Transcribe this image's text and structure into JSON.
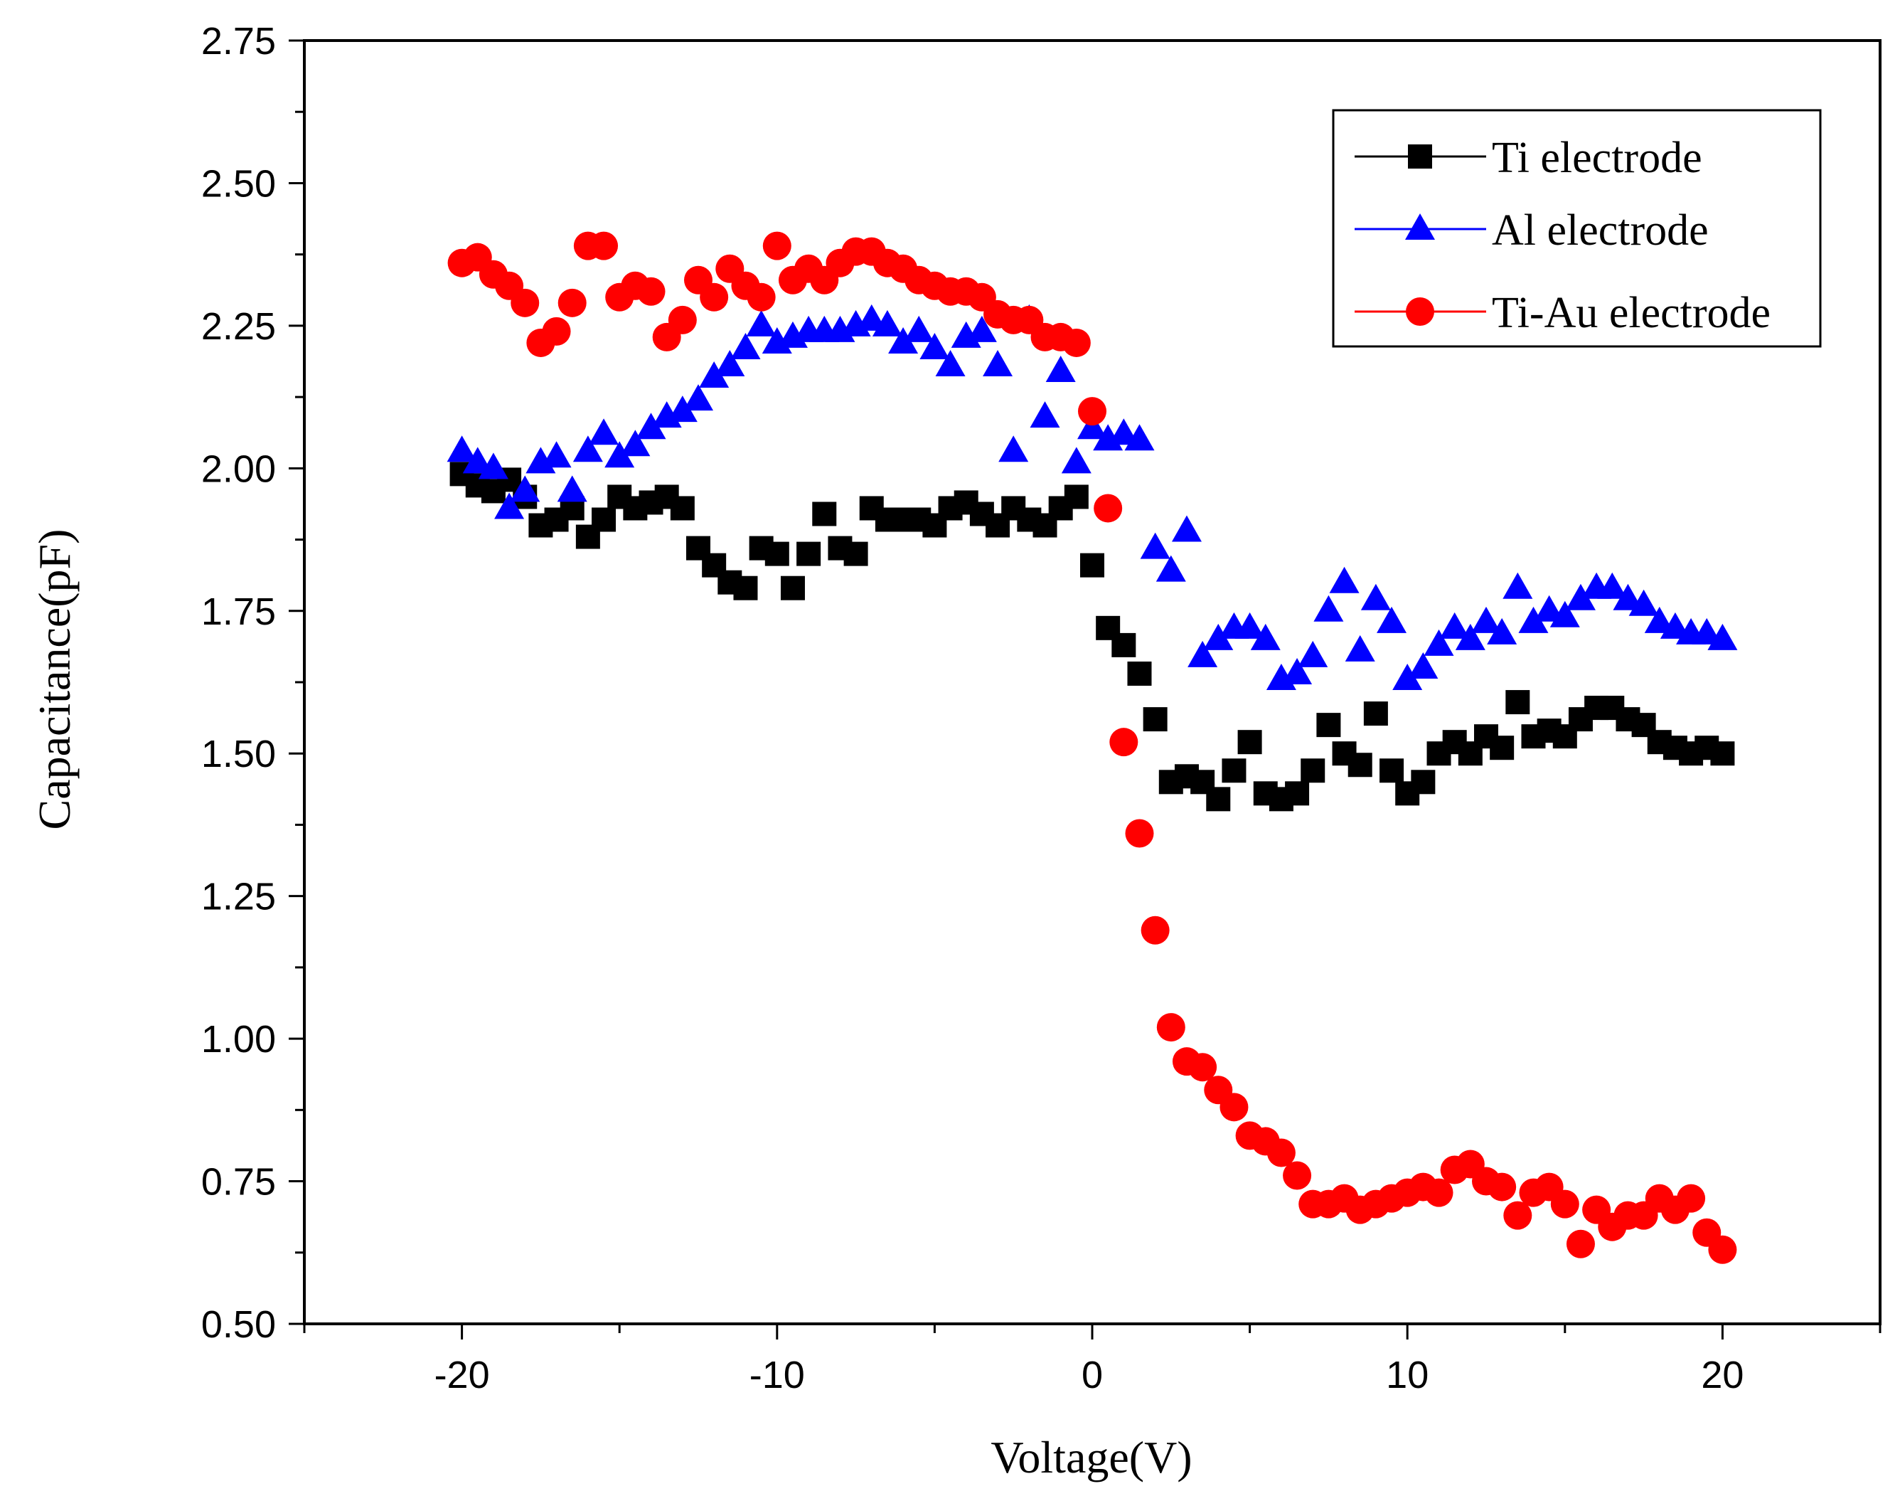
{
  "chart_data": {
    "type": "scatter",
    "title": "",
    "xlabel": "Voltage(V)",
    "ylabel": "Capacitance(pF)",
    "xlim": [
      -25,
      25
    ],
    "ylim": [
      0.5,
      2.75
    ],
    "xticks": [
      "-20",
      "-10",
      "0",
      "10",
      "20"
    ],
    "yticks": [
      "0.50",
      "0.75",
      "1.00",
      "1.25",
      "1.50",
      "1.75",
      "2.00",
      "2.25",
      "2.50",
      "2.75"
    ],
    "legend_position": "top-right",
    "series": [
      {
        "name": "Ti electrode",
        "marker": "square",
        "color": "#000000",
        "x": [
          -20,
          -19.5,
          -19,
          -18.5,
          -18,
          -17.5,
          -17,
          -16.5,
          -16,
          -15.5,
          -15,
          -14.5,
          -14,
          -13.5,
          -13,
          -12.5,
          -12,
          -11.5,
          -11,
          -10.5,
          -10,
          -9.5,
          -9,
          -8.5,
          -8,
          -7.5,
          -7,
          -6.5,
          -6,
          -5.5,
          -5,
          -4.5,
          -4,
          -3.5,
          -3,
          -2.5,
          -2,
          -1.5,
          -1,
          -0.5,
          0,
          0.5,
          1,
          1.5,
          2,
          2.5,
          3,
          3.5,
          4,
          4.5,
          5,
          5.5,
          6,
          6.5,
          7,
          7.5,
          8,
          8.5,
          9,
          9.5,
          10,
          10.5,
          11,
          11.5,
          12,
          12.5,
          13,
          13.5,
          14,
          14.5,
          15,
          15.5,
          16,
          16.5,
          17,
          17.5,
          18,
          18.5,
          19,
          19.5,
          20
        ],
        "y": [
          1.99,
          1.97,
          1.96,
          1.98,
          1.95,
          1.9,
          1.91,
          1.93,
          1.88,
          1.91,
          1.95,
          1.93,
          1.94,
          1.95,
          1.93,
          1.86,
          1.83,
          1.8,
          1.79,
          1.86,
          1.85,
          1.79,
          1.85,
          1.92,
          1.86,
          1.85,
          1.93,
          1.91,
          1.91,
          1.91,
          1.9,
          1.93,
          1.94,
          1.92,
          1.9,
          1.93,
          1.91,
          1.9,
          1.93,
          1.95,
          1.83,
          1.72,
          1.69,
          1.64,
          1.56,
          1.45,
          1.46,
          1.45,
          1.42,
          1.47,
          1.52,
          1.43,
          1.42,
          1.43,
          1.47,
          1.55,
          1.5,
          1.48,
          1.57,
          1.47,
          1.43,
          1.45,
          1.5,
          1.52,
          1.5,
          1.53,
          1.51,
          1.59,
          1.53,
          1.54,
          1.53,
          1.56,
          1.58,
          1.58,
          1.56,
          1.55,
          1.52,
          1.51,
          1.5,
          1.51,
          1.5
        ]
      },
      {
        "name": "Al electrode",
        "marker": "triangle",
        "color": "#0000ff",
        "x": [
          -20,
          -19.5,
          -19,
          -18.5,
          -18,
          -17.5,
          -17,
          -16.5,
          -16,
          -15.5,
          -15,
          -14.5,
          -14,
          -13.5,
          -13,
          -12.5,
          -12,
          -11.5,
          -11,
          -10.5,
          -10,
          -9.5,
          -9,
          -8.5,
          -8,
          -7.5,
          -7,
          -6.5,
          -6,
          -5.5,
          -5,
          -4.5,
          -4,
          -3.5,
          -3,
          -2.5,
          -2,
          -1.5,
          -1,
          -0.5,
          0,
          0.5,
          1,
          1.5,
          2,
          2.5,
          3,
          3.5,
          4,
          4.5,
          5,
          5.5,
          6,
          6.5,
          7,
          7.5,
          8,
          8.5,
          9,
          9.5,
          10,
          10.5,
          11,
          11.5,
          12,
          12.5,
          13,
          13.5,
          14,
          14.5,
          15,
          15.5,
          16,
          16.5,
          17,
          17.5,
          18,
          18.5,
          19,
          19.5,
          20
        ],
        "y": [
          2.03,
          2.01,
          2.0,
          1.93,
          1.96,
          2.01,
          2.02,
          1.96,
          2.03,
          2.06,
          2.02,
          2.04,
          2.07,
          2.09,
          2.1,
          2.12,
          2.16,
          2.18,
          2.21,
          2.25,
          2.22,
          2.23,
          2.24,
          2.24,
          2.24,
          2.25,
          2.26,
          2.25,
          2.22,
          2.24,
          2.21,
          2.18,
          2.23,
          2.24,
          2.18,
          2.03,
          2.26,
          2.09,
          2.17,
          2.01,
          2.07,
          2.05,
          2.06,
          2.05,
          1.86,
          1.82,
          1.89,
          1.67,
          1.7,
          1.72,
          1.72,
          1.7,
          1.63,
          1.64,
          1.67,
          1.75,
          1.8,
          1.68,
          1.77,
          1.73,
          1.63,
          1.65,
          1.69,
          1.72,
          1.7,
          1.73,
          1.71,
          1.79,
          1.73,
          1.75,
          1.74,
          1.77,
          1.79,
          1.79,
          1.77,
          1.76,
          1.73,
          1.72,
          1.71,
          1.71,
          1.7
        ]
      },
      {
        "name": "Ti-Au electrode",
        "marker": "circle",
        "color": "#ff0000",
        "x": [
          -20,
          -19.5,
          -19,
          -18.5,
          -18,
          -17.5,
          -17,
          -16.5,
          -16,
          -15.5,
          -15,
          -14.5,
          -14,
          -13.5,
          -13,
          -12.5,
          -12,
          -11.5,
          -11,
          -10.5,
          -10,
          -9.5,
          -9,
          -8.5,
          -8,
          -7.5,
          -7,
          -6.5,
          -6,
          -5.5,
          -5,
          -4.5,
          -4,
          -3.5,
          -3,
          -2.5,
          -2,
          -1.5,
          -1,
          -0.5,
          0,
          0.5,
          1,
          1.5,
          2,
          2.5,
          3,
          3.5,
          4,
          4.5,
          5,
          5.5,
          6,
          6.5,
          7,
          7.5,
          8,
          8.5,
          9,
          9.5,
          10,
          10.5,
          11,
          11.5,
          12,
          12.5,
          13,
          13.5,
          14,
          14.5,
          15,
          15.5,
          16,
          16.5,
          17,
          17.5,
          18,
          18.5,
          19,
          19.5,
          20
        ],
        "y": [
          2.36,
          2.37,
          2.34,
          2.32,
          2.29,
          2.22,
          2.24,
          2.29,
          2.39,
          2.39,
          2.3,
          2.32,
          2.31,
          2.23,
          2.26,
          2.33,
          2.3,
          2.35,
          2.32,
          2.3,
          2.39,
          2.33,
          2.35,
          2.33,
          2.36,
          2.38,
          2.38,
          2.36,
          2.35,
          2.33,
          2.32,
          2.31,
          2.31,
          2.3,
          2.27,
          2.26,
          2.26,
          2.23,
          2.23,
          2.22,
          2.1,
          1.93,
          1.52,
          1.36,
          1.19,
          1.02,
          0.96,
          0.95,
          0.91,
          0.88,
          0.83,
          0.82,
          0.8,
          0.76,
          0.71,
          0.71,
          0.72,
          0.7,
          0.71,
          0.72,
          0.73,
          0.74,
          0.73,
          0.77,
          0.78,
          0.75,
          0.74,
          0.69,
          0.73,
          0.74,
          0.71,
          0.64,
          0.7,
          0.67,
          0.69,
          0.69,
          0.72,
          0.7,
          0.72,
          0.66,
          0.63
        ]
      }
    ]
  }
}
